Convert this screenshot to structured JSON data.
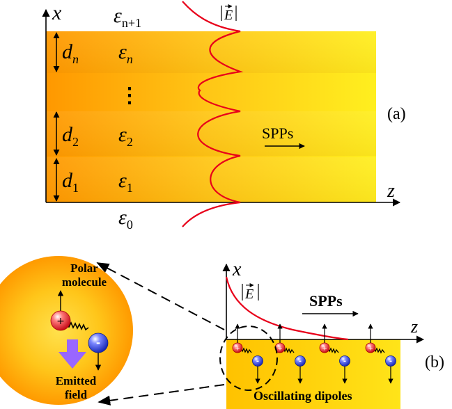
{
  "panel_a": {
    "axis_x": "x",
    "axis_z": "z",
    "eps_top_base": "ε",
    "eps_top_sub": "n+1",
    "field_E": "E",
    "layers": [
      {
        "d_base": "d",
        "d_sub": "n",
        "eps_base": "ε",
        "eps_sub": "n"
      },
      {
        "dots": "⋮"
      },
      {
        "d_base": "d",
        "d_sub": "2",
        "eps_base": "ε",
        "eps_sub": "2"
      },
      {
        "d_base": "d",
        "d_sub": "1",
        "eps_base": "ε",
        "eps_sub": "1"
      }
    ],
    "eps_bottom_base": "ε",
    "eps_bottom_sub": "0",
    "spps": "SPPs",
    "label": "(a)",
    "colors": {
      "orange": "#ff9a00",
      "yellow": "#ffee22",
      "curve": "#e8001a"
    }
  },
  "panel_b": {
    "axis_x": "x",
    "axis_z": "z",
    "field_E": "E",
    "spps": "SPPs",
    "oscillating": "Oscillating dipoles",
    "label": "(b)",
    "circle": {
      "title_line1": "Polar",
      "title_line2": "molecule",
      "emitted_line1": "Emitted",
      "emitted_line2": "field",
      "plus": "+",
      "minus": "-"
    },
    "dipole_plus": "+",
    "dipole_minus": "-",
    "colors": {
      "positive": "#e8303a",
      "negative": "#2a3fd8",
      "arrow": "#9966ff"
    }
  }
}
